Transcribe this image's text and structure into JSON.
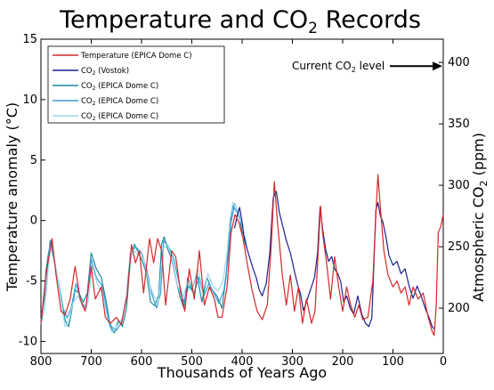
{
  "chart_data": {
    "type": "line",
    "title": {
      "main": "Temperature and CO",
      "sub": "2",
      "tail": " Records"
    },
    "xlabel": "Thousands of Years Ago",
    "ylabel_left": "Temperature anomaly (°C)",
    "ylabel_right": {
      "main": "Atmospheric CO",
      "sub": "2",
      "tail": " (ppm)"
    },
    "xlim": [
      800,
      0
    ],
    "ylim_left": [
      -11,
      15
    ],
    "ylim_right": [
      163.1,
      418.9
    ],
    "x_ticks": [
      800,
      700,
      600,
      500,
      400,
      300,
      200,
      100,
      0
    ],
    "y_left_ticks": [
      -10,
      -5,
      0,
      5,
      10,
      15
    ],
    "y_right_ticks": [
      200,
      250,
      300,
      350,
      400
    ],
    "annotation": {
      "main": "Current CO",
      "sub": "2",
      "tail": " level",
      "value": 397
    },
    "legend_position": "top-left",
    "series": [
      {
        "name": "Temperature (EPICA Dome C)",
        "axis": "left",
        "color": "#d62728",
        "points": [
          [
            800,
            -8.5
          ],
          [
            790,
            -4.5
          ],
          [
            778,
            -1.5
          ],
          [
            770,
            -4.5
          ],
          [
            760,
            -7.5
          ],
          [
            752,
            -7.8
          ],
          [
            742,
            -6.5
          ],
          [
            732,
            -3.8
          ],
          [
            722,
            -6.5
          ],
          [
            712,
            -7.5
          ],
          [
            700,
            -3.8
          ],
          [
            692,
            -6.5
          ],
          [
            680,
            -5.5
          ],
          [
            672,
            -8.0
          ],
          [
            662,
            -8.5
          ],
          [
            650,
            -8.0
          ],
          [
            640,
            -8.6
          ],
          [
            628,
            -6.0
          ],
          [
            620,
            -2.0
          ],
          [
            612,
            -3.5
          ],
          [
            604,
            -2.5
          ],
          [
            596,
            -6.0
          ],
          [
            584,
            -1.5
          ],
          [
            576,
            -3.5
          ],
          [
            568,
            -1.5
          ],
          [
            560,
            -2.5
          ],
          [
            552,
            -7.0
          ],
          [
            540,
            -2.5
          ],
          [
            532,
            -3.0
          ],
          [
            522,
            -6.0
          ],
          [
            514,
            -7.5
          ],
          [
            505,
            -4.0
          ],
          [
            495,
            -6.5
          ],
          [
            485,
            -2.5
          ],
          [
            475,
            -7.0
          ],
          [
            465,
            -5.5
          ],
          [
            455,
            -6.5
          ],
          [
            448,
            -8.0
          ],
          [
            440,
            -8.0
          ],
          [
            430,
            -5.5
          ],
          [
            422,
            -1.0
          ],
          [
            414,
            0.5
          ],
          [
            406,
            -0.2
          ],
          [
            398,
            -1.5
          ],
          [
            390,
            -3.5
          ],
          [
            380,
            -5.8
          ],
          [
            370,
            -7.5
          ],
          [
            360,
            -8.2
          ],
          [
            350,
            -7.0
          ],
          [
            342,
            -2.0
          ],
          [
            336,
            3.2
          ],
          [
            330,
            0.0
          ],
          [
            320,
            -4.5
          ],
          [
            312,
            -7.0
          ],
          [
            304,
            -4.5
          ],
          [
            296,
            -7.5
          ],
          [
            288,
            -5.5
          ],
          [
            280,
            -8.5
          ],
          [
            272,
            -6.5
          ],
          [
            262,
            -8.5
          ],
          [
            255,
            -7.5
          ],
          [
            248,
            -2.0
          ],
          [
            244,
            1.2
          ],
          [
            240,
            -1.0
          ],
          [
            232,
            -3.5
          ],
          [
            224,
            -6.5
          ],
          [
            216,
            -3.0
          ],
          [
            208,
            -5.5
          ],
          [
            200,
            -7.5
          ],
          [
            192,
            -5.5
          ],
          [
            184,
            -7.0
          ],
          [
            176,
            -8.0
          ],
          [
            168,
            -7.0
          ],
          [
            160,
            -8.2
          ],
          [
            150,
            -8.0
          ],
          [
            140,
            -5.0
          ],
          [
            134,
            0.5
          ],
          [
            130,
            3.8
          ],
          [
            125,
            1.0
          ],
          [
            118,
            -2.5
          ],
          [
            110,
            -4.5
          ],
          [
            100,
            -5.5
          ],
          [
            92,
            -5.0
          ],
          [
            84,
            -6.0
          ],
          [
            76,
            -5.5
          ],
          [
            68,
            -7.0
          ],
          [
            60,
            -5.5
          ],
          [
            50,
            -6.5
          ],
          [
            40,
            -6.0
          ],
          [
            30,
            -8.0
          ],
          [
            22,
            -9.2
          ],
          [
            18,
            -9.5
          ],
          [
            14,
            -7.0
          ],
          [
            10,
            -1.0
          ],
          [
            5,
            -0.5
          ],
          [
            0,
            0.5
          ]
        ]
      },
      {
        "name": "CO2 (Vostok)",
        "axis": "right",
        "color": "#1f1f8f",
        "points": [
          [
            415,
            265
          ],
          [
            410,
            275
          ],
          [
            405,
            282
          ],
          [
            400,
            270
          ],
          [
            395,
            255
          ],
          [
            390,
            248
          ],
          [
            384,
            240
          ],
          [
            378,
            232
          ],
          [
            372,
            225
          ],
          [
            366,
            215
          ],
          [
            360,
            210
          ],
          [
            352,
            220
          ],
          [
            345,
            245
          ],
          [
            338,
            290
          ],
          [
            332,
            295
          ],
          [
            326,
            278
          ],
          [
            320,
            268
          ],
          [
            312,
            255
          ],
          [
            304,
            245
          ],
          [
            296,
            230
          ],
          [
            290,
            220
          ],
          [
            284,
            212
          ],
          [
            278,
            198
          ],
          [
            272,
            205
          ],
          [
            264,
            215
          ],
          [
            256,
            225
          ],
          [
            250,
            245
          ],
          [
            245,
            282
          ],
          [
            240,
            265
          ],
          [
            234,
            248
          ],
          [
            228,
            238
          ],
          [
            222,
            242
          ],
          [
            216,
            232
          ],
          [
            210,
            228
          ],
          [
            204,
            222
          ],
          [
            198,
            205
          ],
          [
            192,
            210
          ],
          [
            185,
            200
          ],
          [
            178,
            195
          ],
          [
            170,
            210
          ],
          [
            162,
            195
          ],
          [
            155,
            188
          ],
          [
            148,
            185
          ],
          [
            142,
            192
          ],
          [
            138,
            235
          ],
          [
            134,
            280
          ],
          [
            130,
            286
          ],
          [
            125,
            275
          ],
          [
            120,
            270
          ],
          [
            114,
            258
          ],
          [
            108,
            243
          ],
          [
            100,
            235
          ],
          [
            92,
            238
          ],
          [
            84,
            228
          ],
          [
            76,
            232
          ],
          [
            68,
            218
          ],
          [
            60,
            208
          ],
          [
            52,
            218
          ],
          [
            44,
            210
          ],
          [
            36,
            200
          ],
          [
            28,
            192
          ],
          [
            22,
            185
          ],
          [
            18,
            183
          ]
        ]
      },
      {
        "name": "CO2 (EPICA Dome C)",
        "axis": "right",
        "color": "#1a8a9a",
        "points": [
          [
            800,
            195
          ],
          [
            795,
            200
          ],
          [
            790,
            230
          ],
          [
            785,
            245
          ],
          [
            780,
            255
          ],
          [
            770,
            230
          ],
          [
            760,
            210
          ],
          [
            752,
            190
          ],
          [
            745,
            185
          ],
          [
            740,
            195
          ],
          [
            732,
            215
          ],
          [
            724,
            212
          ],
          [
            716,
            205
          ],
          [
            708,
            212
          ],
          [
            700,
            245
          ],
          [
            690,
            232
          ],
          [
            680,
            225
          ],
          [
            670,
            205
          ],
          [
            662,
            185
          ],
          [
            654,
            180
          ],
          [
            646,
            190
          ],
          [
            638,
            185
          ],
          [
            630,
            200
          ],
          [
            622,
            240
          ],
          [
            614,
            252
          ],
          [
            606,
            245
          ],
          [
            598,
            238
          ],
          [
            590,
            228
          ],
          [
            582,
            205
          ],
          [
            574,
            202
          ],
          [
            566,
            210
          ],
          [
            560,
            252
          ],
          [
            555,
            258
          ],
          [
            548,
            248
          ],
          [
            540,
            240
          ],
          [
            532,
            225
          ],
          [
            524,
            210
          ],
          [
            516,
            200
          ],
          [
            508,
            225
          ],
          [
            500,
            215
          ],
          [
            490,
            228
          ],
          [
            480,
            205
          ],
          [
            470,
            225
          ],
          [
            460,
            215
          ],
          [
            450,
            210
          ],
          [
            440,
            200
          ],
          [
            432,
            225
          ],
          [
            425,
            262
          ],
          [
            420,
            280
          ],
          [
            415,
            285
          ],
          [
            410,
            280
          ],
          [
            405,
            275
          ],
          [
            400,
            262
          ],
          [
            395,
            258
          ],
          [
            390,
            248
          ]
        ]
      },
      {
        "name": "CO2 (EPICA Dome C)",
        "axis": "right",
        "color": "#3a9ad9",
        "points": [
          [
            800,
            187
          ],
          [
            792,
            205
          ],
          [
            782,
            255
          ],
          [
            774,
            240
          ],
          [
            764,
            218
          ],
          [
            756,
            200
          ],
          [
            748,
            192
          ],
          [
            740,
            200
          ],
          [
            730,
            220
          ],
          [
            720,
            205
          ],
          [
            710,
            200
          ],
          [
            700,
            240
          ],
          [
            690,
            225
          ],
          [
            678,
            218
          ],
          [
            668,
            195
          ],
          [
            660,
            185
          ],
          [
            650,
            182
          ],
          [
            640,
            188
          ],
          [
            630,
            210
          ],
          [
            622,
            245
          ],
          [
            612,
            250
          ],
          [
            600,
            245
          ],
          [
            590,
            232
          ],
          [
            580,
            212
          ],
          [
            570,
            200
          ],
          [
            562,
            212
          ],
          [
            556,
            255
          ],
          [
            546,
            250
          ],
          [
            536,
            240
          ],
          [
            526,
            222
          ],
          [
            516,
            205
          ],
          [
            506,
            218
          ],
          [
            496,
            212
          ],
          [
            486,
            225
          ],
          [
            476,
            210
          ],
          [
            466,
            220
          ],
          [
            456,
            212
          ],
          [
            446,
            204
          ],
          [
            436,
            215
          ],
          [
            428,
            240
          ],
          [
            422,
            270
          ],
          [
            416,
            282
          ],
          [
            410,
            278
          ],
          [
            404,
            272
          ],
          [
            398,
            266
          ]
        ]
      },
      {
        "name": "CO2 (EPICA Dome C)",
        "axis": "right",
        "color": "#9ad8ec",
        "points": [
          [
            800,
            190
          ],
          [
            790,
            210
          ],
          [
            782,
            250
          ],
          [
            772,
            235
          ],
          [
            762,
            212
          ],
          [
            752,
            185
          ],
          [
            744,
            190
          ],
          [
            736,
            205
          ],
          [
            726,
            210
          ],
          [
            716,
            200
          ],
          [
            706,
            205
          ],
          [
            698,
            235
          ],
          [
            688,
            220
          ],
          [
            676,
            210
          ],
          [
            666,
            188
          ],
          [
            658,
            180
          ],
          [
            648,
            186
          ],
          [
            638,
            192
          ],
          [
            628,
            215
          ],
          [
            618,
            248
          ],
          [
            606,
            243
          ],
          [
            596,
            240
          ],
          [
            586,
            222
          ],
          [
            576,
            210
          ],
          [
            566,
            205
          ],
          [
            558,
            248
          ],
          [
            548,
            252
          ],
          [
            538,
            238
          ],
          [
            528,
            218
          ],
          [
            518,
            208
          ],
          [
            508,
            222
          ],
          [
            498,
            218
          ],
          [
            488,
            232
          ],
          [
            478,
            214
          ],
          [
            468,
            228
          ],
          [
            458,
            218
          ],
          [
            448,
            214
          ],
          [
            438,
            222
          ],
          [
            430,
            245
          ],
          [
            424,
            272
          ],
          [
            418,
            286
          ],
          [
            412,
            282
          ],
          [
            406,
            276
          ],
          [
            400,
            268
          ]
        ]
      }
    ]
  }
}
